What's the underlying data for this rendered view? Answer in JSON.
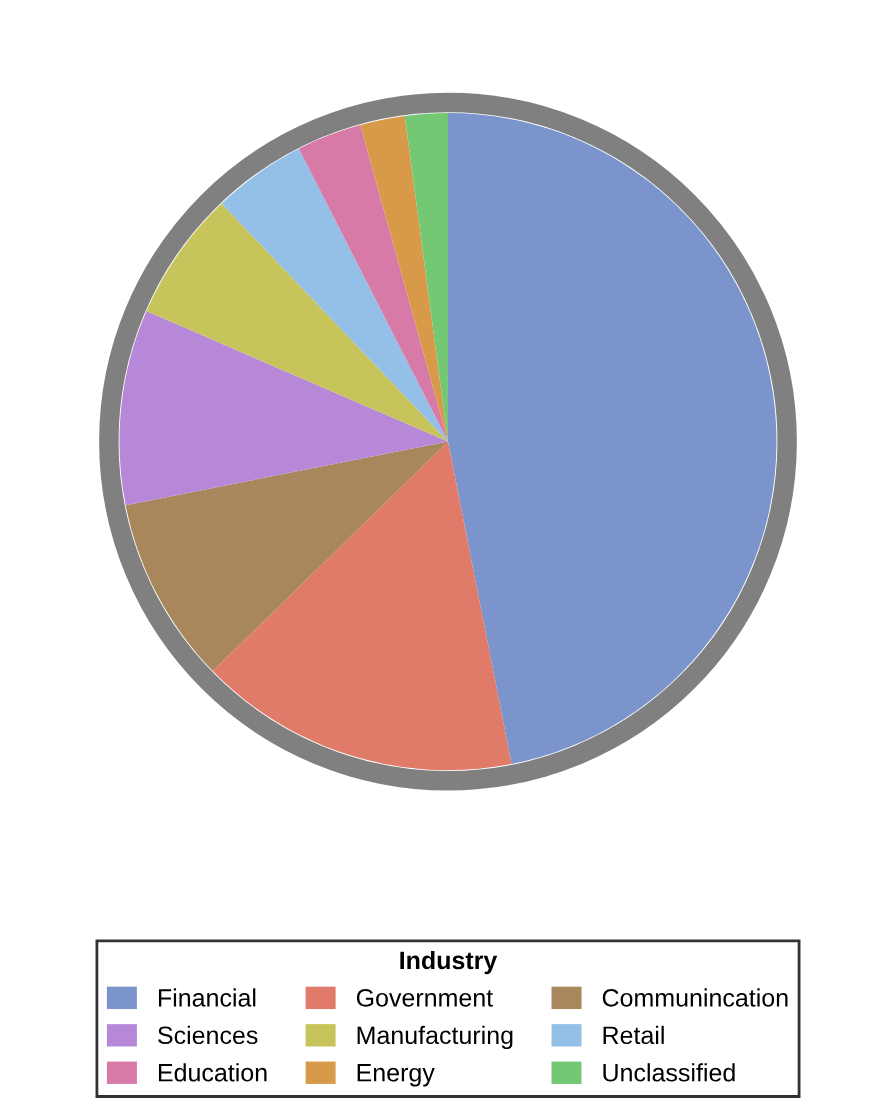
{
  "chart_data": {
    "type": "pie",
    "legend_title": "Industry",
    "legend": "bottom",
    "categories": [
      "Financial",
      "Government",
      "Communincation",
      "Sciences",
      "Manufacturing",
      "Retail",
      "Education",
      "Energy",
      "Unclassified"
    ],
    "values": [
      46.9,
      15.8,
      9.2,
      9.6,
      6.4,
      4.6,
      3.2,
      2.2,
      2.1
    ],
    "colors": [
      "#7b95cc",
      "#e07b6a",
      "#a8875c",
      "#b888d8",
      "#c8c45c",
      "#94c0e8",
      "#d87aa8",
      "#d89a48",
      "#74c874"
    ]
  }
}
